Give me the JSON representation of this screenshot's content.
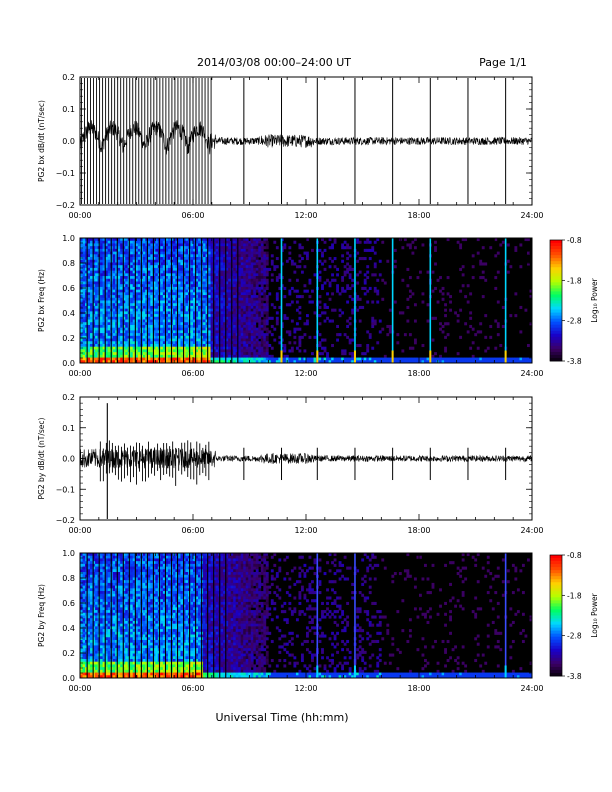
{
  "header": {
    "title": "2014/03/08   00:00–24:00 UT",
    "page_label": "Page 1/1"
  },
  "footer": {
    "xlabel": "Universal Time (hh:mm)"
  },
  "colorbar": {
    "label": "Log₁₀ Power",
    "ticks": [
      "-0.8",
      "-1.8",
      "-2.8",
      "-3.8"
    ],
    "colormap": [
      "#000000",
      "#3c0064",
      "#1a00c8",
      "#0050ff",
      "#00d8ff",
      "#00ff60",
      "#b4ff00",
      "#ffd000",
      "#ff5000",
      "#ff0000"
    ]
  },
  "chart_data": [
    {
      "type": "line",
      "ylabel": "PG2 bx dB/dt (nT/sec)",
      "xlim": [
        0,
        24
      ],
      "ylim": [
        -0.2,
        0.2
      ],
      "x_ticks": [
        "00:00",
        "06:00",
        "12:00",
        "18:00",
        "24:00"
      ],
      "y_ticks": [
        "0.2",
        "0.1",
        "0.0",
        "−0.1",
        "−0.2"
      ],
      "dense_spike_interval_hours": [
        0.0,
        7.0
      ],
      "spike_times_hours": [
        8.7,
        10.7,
        12.6,
        14.6,
        16.6,
        18.6,
        20.6,
        22.6
      ],
      "background_amplitude": 0.012
    },
    {
      "type": "heatmap",
      "ylabel": "PG2 bx Freq (Hz)",
      "xlim": [
        0,
        24
      ],
      "ylim": [
        0.0,
        1.0
      ],
      "x_ticks": [
        "00:00",
        "06:00",
        "12:00",
        "18:00",
        "24:00"
      ],
      "y_ticks": [
        "1.0",
        "0.8",
        "0.6",
        "0.4",
        "0.2",
        "0.0"
      ],
      "color_range": [
        -3.8,
        -0.8
      ],
      "bright_lines_hours": [
        10.7,
        12.6,
        14.6,
        16.6,
        18.6,
        22.6
      ]
    },
    {
      "type": "line",
      "ylabel": "PG2 by dB/dt (nT/sec)",
      "xlim": [
        0,
        24
      ],
      "ylim": [
        -0.2,
        0.2
      ],
      "x_ticks": [
        "00:00",
        "06:00",
        "12:00",
        "18:00",
        "24:00"
      ],
      "y_ticks": [
        "0.2",
        "0.1",
        "0.0",
        "−0.1",
        "−0.2"
      ],
      "dense_spike_interval_hours": [
        1.0,
        7.0
      ],
      "spike_times_hours": [
        8.7,
        10.7,
        12.6,
        14.6,
        16.6,
        18.6,
        20.6,
        22.6
      ],
      "background_amplitude": 0.01
    },
    {
      "type": "heatmap",
      "ylabel": "PG2 by Freq (Hz)",
      "xlim": [
        0,
        24
      ],
      "ylim": [
        0.0,
        1.0
      ],
      "x_ticks": [
        "00:00",
        "06:00",
        "12:00",
        "18:00",
        "24:00"
      ],
      "y_ticks": [
        "1.0",
        "0.8",
        "0.6",
        "0.4",
        "0.2",
        "0.0"
      ],
      "color_range": [
        -3.8,
        -0.8
      ],
      "bright_lines_hours": [
        12.6,
        14.6,
        22.6
      ]
    }
  ]
}
